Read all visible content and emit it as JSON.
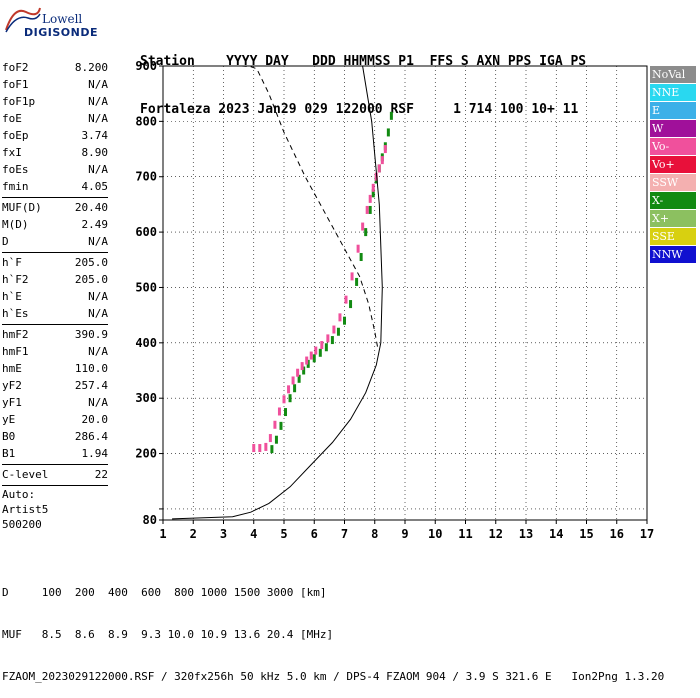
{
  "logo": {
    "line1": "Lowell",
    "line2": "DIGISONDE"
  },
  "header": {
    "labels_line": "Station    YYYY DAY   DDD HHMMSS P1  FFS S AXN PPS IGA PS",
    "values_line": "Fortaleza 2023 Jan29 029 122000 RSF     1 714 100 10+ 11"
  },
  "params": {
    "group1": [
      {
        "label": "foF2",
        "value": "8.200"
      },
      {
        "label": "foF1",
        "value": "N/A"
      },
      {
        "label": "foF1p",
        "value": "N/A"
      },
      {
        "label": "foE",
        "value": "N/A"
      },
      {
        "label": "foEp",
        "value": "3.74"
      },
      {
        "label": "fxI",
        "value": "8.90"
      },
      {
        "label": "foEs",
        "value": "N/A"
      },
      {
        "label": "fmin",
        "value": "4.05"
      }
    ],
    "group2": [
      {
        "label": "MUF(D)",
        "value": "20.40"
      },
      {
        "label": "M(D)",
        "value": "2.49"
      },
      {
        "label": "D",
        "value": "N/A"
      }
    ],
    "group3": [
      {
        "label": "h`F",
        "value": "205.0"
      },
      {
        "label": "h`F2",
        "value": "205.0"
      },
      {
        "label": "h`E",
        "value": "N/A"
      },
      {
        "label": "h`Es",
        "value": "N/A"
      }
    ],
    "group4": [
      {
        "label": "hmF2",
        "value": "390.9"
      },
      {
        "label": "hmF1",
        "value": "N/A"
      },
      {
        "label": "hmE",
        "value": "110.0"
      },
      {
        "label": "yF2",
        "value": "257.4"
      },
      {
        "label": "yF1",
        "value": "N/A"
      },
      {
        "label": "yE",
        "value": "20.0"
      },
      {
        "label": "B0",
        "value": "286.4"
      },
      {
        "label": "B1",
        "value": "1.94"
      }
    ],
    "clevel": {
      "label": "C-level",
      "value": "22"
    },
    "auto_lines": [
      "Auto:",
      "Artist5",
      "500200"
    ]
  },
  "legend": [
    {
      "label": "NoVal",
      "color": "#8c8c8c"
    },
    {
      "label": "NNE",
      "color": "#29d8f0"
    },
    {
      "label": "E",
      "color": "#3bb0e8"
    },
    {
      "label": "W",
      "color": "#a0109a"
    },
    {
      "label": "Vo-",
      "color": "#f0509c"
    },
    {
      "label": "Vo+",
      "color": "#e8103a"
    },
    {
      "label": "SSW",
      "color": "#f4b0b0"
    },
    {
      "label": "X-",
      "color": "#128a12"
    },
    {
      "label": "X+",
      "color": "#8cc060"
    },
    {
      "label": "SSE",
      "color": "#d8d010"
    },
    {
      "label": "NNW",
      "color": "#1010d0"
    }
  ],
  "footer": {
    "d_line": "D     100  200  400  600  800 1000 1500 3000 [km]",
    "muf_line": "MUF   8.5  8.6  8.9  9.3 10.0 10.9 13.6 20.4 [MHz]",
    "file_line": "FZAOM_2023029122000.RSF / 320fx256h 50 kHz 5.0 km / DPS-4 FZAOM 904 / 3.9 S 321.6 E   Ion2Png 1.3.20"
  },
  "chart_data": {
    "type": "scatter",
    "title": "",
    "xlabel": "",
    "ylabel": "",
    "xlim": [
      1,
      17
    ],
    "ylim": [
      80,
      900
    ],
    "x_ticks": [
      1,
      2,
      3,
      4,
      5,
      6,
      7,
      8,
      9,
      10,
      11,
      12,
      13,
      14,
      15,
      16,
      17
    ],
    "y_ticks": [
      80,
      100,
      200,
      300,
      400,
      500,
      600,
      700,
      800,
      900
    ],
    "y_tick_labels": [
      "80",
      "",
      "200",
      "300",
      "400",
      "500",
      "600",
      "700",
      "800",
      "900"
    ],
    "grid": true,
    "series": [
      {
        "name": "X-",
        "kind": "points",
        "color_key": "X-",
        "x": [
          4.6,
          4.75,
          4.9,
          5.05,
          5.2,
          5.35,
          5.5,
          5.65,
          5.8,
          6.0,
          6.2,
          6.4,
          6.6,
          6.8,
          7.0,
          7.2,
          7.4,
          7.55,
          7.7,
          7.85,
          7.95,
          8.05,
          8.15,
          8.25,
          8.35,
          8.45,
          8.55
        ],
        "y": [
          208,
          225,
          250,
          275,
          300,
          318,
          335,
          350,
          362,
          372,
          382,
          392,
          405,
          420,
          440,
          470,
          510,
          555,
          600,
          640,
          670,
          695,
          715,
          735,
          755,
          780,
          810
        ]
      },
      {
        "name": "Vo-",
        "kind": "points",
        "color_key": "Vo-",
        "x": [
          4.0,
          4.2,
          4.4,
          4.55,
          4.7,
          4.85,
          5.0,
          5.15,
          5.3,
          5.45,
          5.6,
          5.75,
          5.9,
          6.05,
          6.25,
          6.45,
          6.65,
          6.85,
          7.05,
          7.25,
          7.45,
          7.6,
          7.75,
          7.85,
          7.95,
          8.05,
          8.15,
          8.25,
          8.35
        ],
        "y": [
          210,
          210,
          212,
          228,
          252,
          276,
          298,
          316,
          332,
          346,
          358,
          368,
          377,
          386,
          396,
          408,
          424,
          446,
          478,
          520,
          570,
          610,
          640,
          660,
          680,
          700,
          715,
          730,
          750
        ]
      },
      {
        "name": "profile",
        "kind": "line",
        "style": "solid",
        "x": [
          1.3,
          3.3,
          3.9,
          4.5,
          5.2,
          5.9,
          6.6,
          7.2,
          7.7,
          8.05,
          8.2,
          8.25,
          8.15,
          7.9,
          7.6
        ],
        "y": [
          82,
          86,
          94,
          110,
          140,
          180,
          220,
          262,
          310,
          360,
          400,
          500,
          650,
          800,
          900
        ]
      },
      {
        "name": "profile-virtual",
        "kind": "line",
        "style": "dashed",
        "x": [
          3.6,
          3.9,
          4.1,
          4.5,
          5.0,
          5.7,
          6.4,
          7.0,
          7.5,
          7.8,
          8.0,
          8.1
        ],
        "y": [
          900,
          899,
          895,
          850,
          780,
          700,
          630,
          570,
          520,
          470,
          420,
          390
        ]
      }
    ]
  }
}
